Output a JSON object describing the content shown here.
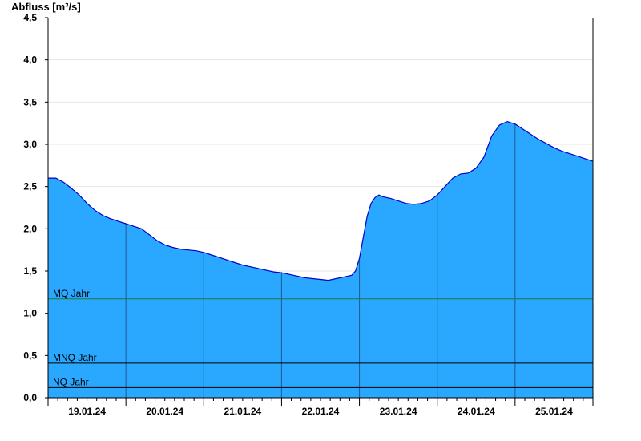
{
  "colors": {
    "area_fill": "#2aa8ff",
    "area_line": "#0000cc",
    "mq_line": "#1a7a3a",
    "ref_line": "#000000",
    "grid": "#e6e6e6",
    "day_line": "#1a3a5a",
    "axis": "#000000"
  },
  "chart_data": {
    "type": "area",
    "ylabel": "Abfluss [m³/s]",
    "ylim": [
      0,
      4.5
    ],
    "xlim": [
      0,
      7.0
    ],
    "yticks": [
      {
        "value": 0.0,
        "label": "0,0"
      },
      {
        "value": 0.5,
        "label": "0,5"
      },
      {
        "value": 1.0,
        "label": "1,0"
      },
      {
        "value": 1.5,
        "label": "1,5"
      },
      {
        "value": 2.0,
        "label": "2,0"
      },
      {
        "value": 2.5,
        "label": "2,5"
      },
      {
        "value": 3.0,
        "label": "3,0"
      },
      {
        "value": 3.5,
        "label": "3,5"
      },
      {
        "value": 4.0,
        "label": "4,0"
      },
      {
        "value": 4.5,
        "label": "4,5"
      }
    ],
    "xticks": [
      "19.01.24",
      "20.01.24",
      "21.01.24",
      "22.01.24",
      "23.01.24",
      "24.01.24",
      "25.01.24"
    ],
    "grid": true,
    "reference_lines": [
      {
        "name": "MQ Jahr",
        "value": 1.17
      },
      {
        "name": "MNQ Jahr",
        "value": 0.41
      },
      {
        "name": "NQ Jahr",
        "value": 0.12
      }
    ],
    "series": [
      {
        "x": [
          0.0,
          0.1,
          0.2,
          0.3,
          0.4,
          0.5,
          0.6,
          0.7,
          0.8,
          0.9,
          1.0,
          1.1,
          1.2,
          1.3,
          1.4,
          1.5,
          1.6,
          1.7,
          1.8,
          1.9,
          2.0,
          2.1,
          2.2,
          2.3,
          2.4,
          2.5,
          2.6,
          2.7,
          2.8,
          2.9,
          3.0,
          3.1,
          3.2,
          3.3,
          3.4,
          3.5,
          3.6,
          3.7,
          3.8,
          3.9,
          3.95,
          4.0,
          4.05,
          4.1,
          4.15,
          4.2,
          4.25,
          4.3,
          4.4,
          4.5,
          4.6,
          4.7,
          4.8,
          4.9,
          5.0,
          5.1,
          5.2,
          5.3,
          5.4,
          5.5,
          5.6,
          5.7,
          5.8,
          5.9,
          6.0,
          6.1,
          6.2,
          6.3,
          6.4,
          6.5,
          6.6,
          6.7,
          6.8,
          6.9,
          7.0
        ],
        "y": [
          2.6,
          2.6,
          2.55,
          2.48,
          2.4,
          2.3,
          2.22,
          2.16,
          2.12,
          2.09,
          2.06,
          2.03,
          2.0,
          1.93,
          1.86,
          1.81,
          1.78,
          1.76,
          1.75,
          1.74,
          1.72,
          1.69,
          1.66,
          1.63,
          1.6,
          1.57,
          1.55,
          1.53,
          1.51,
          1.49,
          1.48,
          1.46,
          1.44,
          1.42,
          1.41,
          1.4,
          1.39,
          1.41,
          1.43,
          1.45,
          1.5,
          1.65,
          1.9,
          2.15,
          2.3,
          2.37,
          2.4,
          2.38,
          2.36,
          2.33,
          2.3,
          2.29,
          2.3,
          2.33,
          2.4,
          2.5,
          2.6,
          2.65,
          2.66,
          2.72,
          2.85,
          3.1,
          3.23,
          3.27,
          3.24,
          3.18,
          3.12,
          3.06,
          3.01,
          2.96,
          2.92,
          2.89,
          2.86,
          2.83,
          2.8
        ]
      }
    ]
  }
}
